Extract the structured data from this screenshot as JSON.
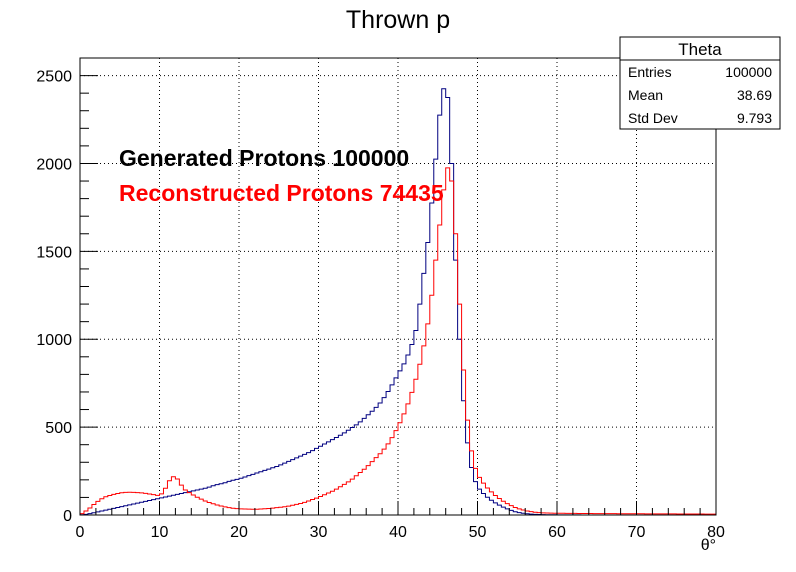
{
  "chart_data": {
    "type": "line",
    "title": "Thrown p",
    "xlabel": "θ°",
    "ylabel": "",
    "xlim": [
      0,
      80
    ],
    "ylim": [
      0,
      2600
    ],
    "x_ticks": [
      0,
      10,
      20,
      30,
      40,
      50,
      60,
      70,
      80
    ],
    "x_tick_labels": [
      "0",
      "10",
      "20",
      "30",
      "40",
      "50",
      "60",
      "70",
      "80"
    ],
    "y_ticks": [
      0,
      500,
      1000,
      1500,
      2000,
      2500
    ],
    "y_tick_labels": [
      "0",
      "500",
      "1000",
      "1500",
      "2000",
      "2500"
    ],
    "grid": true,
    "line_style": "step",
    "series": [
      {
        "color": "#000080",
        "x": [
          0,
          1,
          2,
          3,
          4,
          5,
          6,
          7,
          8,
          9,
          10,
          11,
          12,
          13,
          14,
          15,
          16,
          17,
          18,
          19,
          20,
          21,
          22,
          23,
          24,
          25,
          26,
          27,
          28,
          29,
          30,
          31,
          32,
          33,
          34,
          35,
          36,
          37,
          38,
          39,
          40,
          41,
          42,
          42.5,
          43,
          43.5,
          44,
          44.5,
          45,
          45.5,
          46,
          46.5,
          47,
          47.5,
          48,
          48.5,
          49,
          49.5,
          50,
          51,
          52,
          53,
          54,
          55,
          56,
          57,
          58,
          60,
          65,
          70,
          75,
          80
        ],
        "y": [
          0,
          5,
          15,
          25,
          35,
          45,
          55,
          65,
          75,
          85,
          95,
          105,
          115,
          125,
          135,
          145,
          155,
          170,
          180,
          195,
          205,
          220,
          235,
          250,
          265,
          280,
          300,
          320,
          340,
          360,
          385,
          410,
          435,
          460,
          490,
          520,
          560,
          600,
          650,
          720,
          800,
          880,
          1000,
          1100,
          1300,
          1450,
          1650,
          1900,
          2150,
          2400,
          2450,
          2300,
          1700,
          1200,
          800,
          500,
          320,
          220,
          160,
          110,
          75,
          50,
          30,
          15,
          8,
          4,
          2,
          1,
          0,
          0,
          0,
          0
        ]
      },
      {
        "color": "#ff0000",
        "x": [
          0,
          1,
          2,
          3,
          4,
          5,
          6,
          7,
          8,
          9,
          10,
          10.5,
          11,
          11.5,
          12,
          12.5,
          13,
          14,
          15,
          16,
          17,
          18,
          19,
          20,
          22,
          24,
          26,
          28,
          30,
          32,
          34,
          36,
          38,
          39,
          40,
          41,
          42,
          43,
          44,
          44.5,
          45,
          45.5,
          46,
          46.5,
          47,
          47.5,
          48,
          48.5,
          49,
          49.5,
          50,
          51,
          52,
          53,
          54,
          55,
          56,
          57,
          58,
          60,
          62,
          65,
          70,
          75,
          80
        ],
        "y": [
          0,
          30,
          70,
          100,
          115,
          125,
          130,
          128,
          125,
          118,
          110,
          130,
          175,
          215,
          220,
          190,
          150,
          120,
          95,
          75,
          60,
          48,
          40,
          35,
          32,
          38,
          48,
          68,
          100,
          140,
          195,
          270,
          360,
          420,
          500,
          600,
          730,
          900,
          1150,
          1350,
          1550,
          1750,
          1950,
          2000,
          1800,
          1400,
          1000,
          650,
          430,
          300,
          230,
          165,
          120,
          85,
          58,
          38,
          25,
          17,
          12,
          10,
          9,
          8,
          7,
          6,
          5
        ]
      }
    ],
    "annotations": [
      {
        "text": "Generated Protons 100000",
        "color": "#000000"
      },
      {
        "text": "Reconstructed Protons 74435",
        "color": "#ff0000"
      }
    ]
  },
  "stats_box": {
    "title": "Theta",
    "rows": [
      {
        "label": "Entries",
        "value": "100000"
      },
      {
        "label": "Mean",
        "value": "38.69"
      },
      {
        "label": "Std Dev",
        "value": "9.793"
      }
    ]
  }
}
